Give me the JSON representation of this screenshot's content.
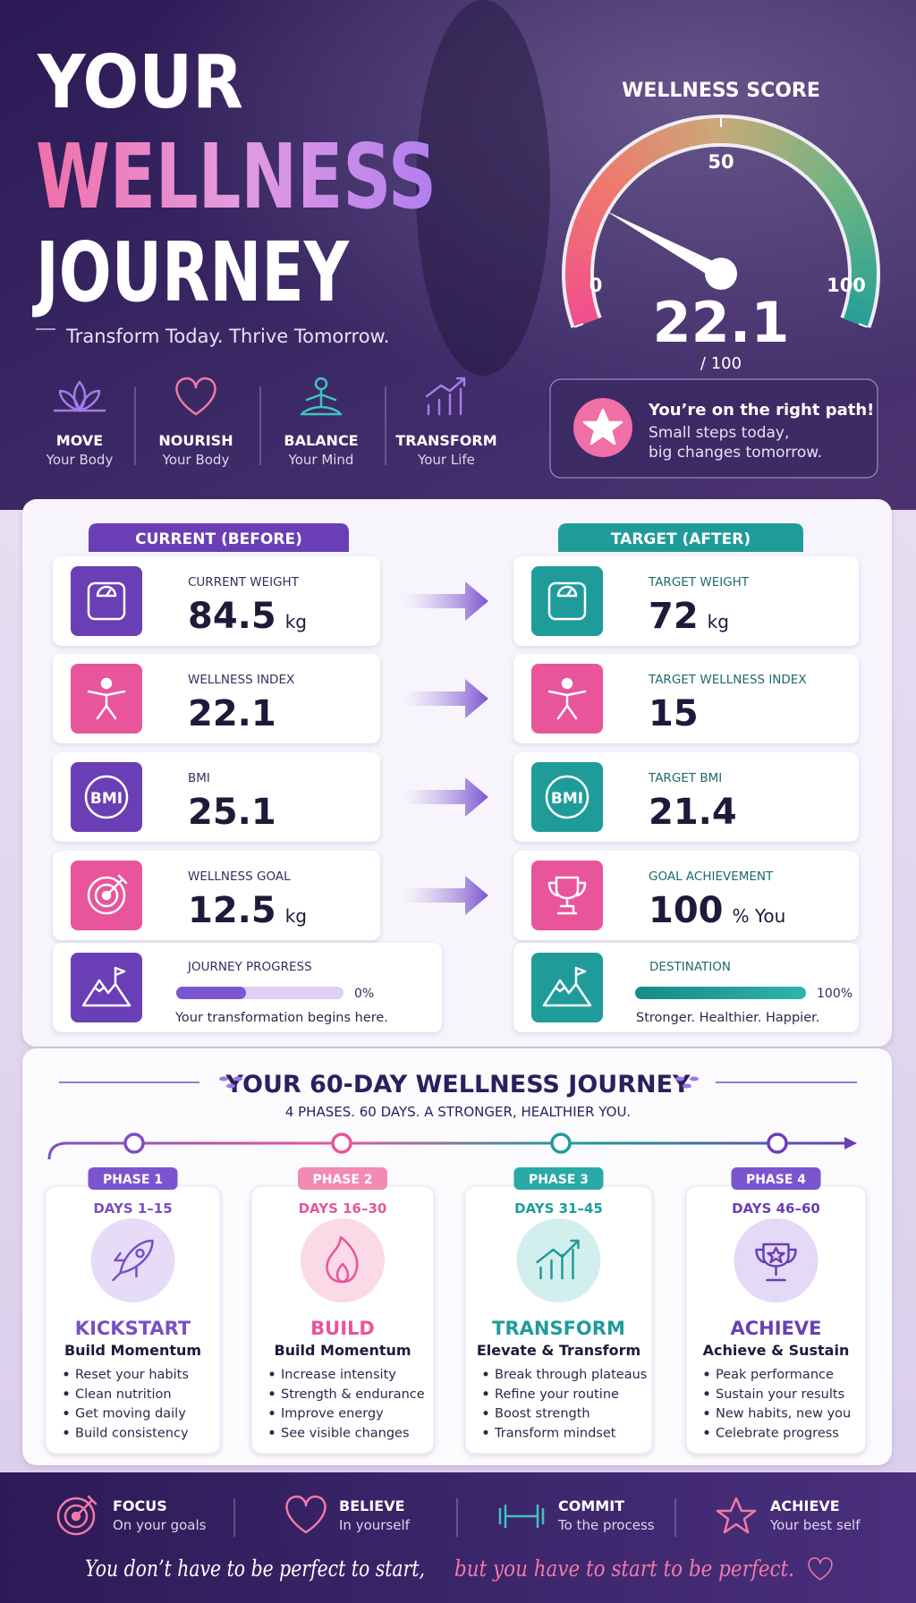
{
  "header": {
    "title_line1": "YOUR",
    "title_line2": "WELLNESS",
    "title_line3": "JOURNEY",
    "tagline": "Transform Today. Thrive Tomorrow."
  },
  "pillars": [
    {
      "title": "MOVE",
      "subtitle": "Your Body"
    },
    {
      "title": "NOURISH",
      "subtitle": "Your Body"
    },
    {
      "title": "BALANCE",
      "subtitle": "Your Mind"
    },
    {
      "title": "TRANSFORM",
      "subtitle": "Your Life"
    }
  ],
  "gauge": {
    "title": "WELLNESS SCORE",
    "value": 22.1,
    "range": [
      0,
      100
    ],
    "ticks": [
      0,
      50,
      100
    ],
    "max_label": "/ 100"
  },
  "message": {
    "title": "You’re on the right path!",
    "lines": [
      "Small steps today,",
      "big changes tomorrow."
    ]
  },
  "comparison": {
    "current_header": "CURRENT (BEFORE)",
    "target_header": "TARGET (AFTER)",
    "rows": [
      {
        "current": {
          "label": "CURRENT WEIGHT",
          "value": "84.5",
          "unit": "kg"
        },
        "target": {
          "label": "TARGET WEIGHT",
          "value": "72",
          "unit": "kg"
        }
      },
      {
        "current": {
          "label": "WELLNESS INDEX",
          "value": "22.1"
        },
        "target": {
          "label": "TARGET WELLNESS INDEX",
          "value": "15"
        }
      },
      {
        "current": {
          "label": "BMI",
          "value": "25.1",
          "icon_text": "BMI"
        },
        "target": {
          "label": "TARGET BMI",
          "value": "21.4",
          "icon_text": "BMI"
        }
      },
      {
        "current": {
          "label": "WELLNESS GOAL",
          "value": "12.5",
          "unit": "kg"
        },
        "target": {
          "label": "GOAL ACHIEVEMENT",
          "value": "100",
          "unit": "% You"
        }
      }
    ],
    "progress": {
      "scale": [
        0,
        100
      ],
      "current": {
        "label": "JOURNEY PROGRESS",
        "value": 0,
        "value_label": "0%",
        "caption": "Your transformation begins here."
      },
      "target": {
        "label": "DESTINATION",
        "value": 100,
        "value_label": "100%",
        "caption": "Stronger. Healthier. Happier."
      }
    }
  },
  "journey": {
    "title": "YOUR 60-DAY WELLNESS JOURNEY",
    "subtitle": "4 PHASES. 60 DAYS. A STRONGER, HEALTHIER YOU.",
    "phases": [
      {
        "phase": "PHASE 1",
        "days": "DAYS 1–15",
        "name": "KICKSTART",
        "subtitle": "Build Momentum",
        "items": [
          "Reset your habits",
          "Clean nutrition",
          "Get moving daily",
          "Build consistency"
        ]
      },
      {
        "phase": "PHASE 2",
        "days": "DAYS 16–30",
        "name": "BUILD",
        "subtitle": "Build Momentum",
        "items": [
          "Increase intensity",
          "Strength & endurance",
          "Improve energy",
          "See visible changes"
        ]
      },
      {
        "phase": "PHASE 3",
        "days": "DAYS 31–45",
        "name": "TRANSFORM",
        "subtitle": "Elevate & Transform",
        "items": [
          "Break through plateaus",
          "Refine your routine",
          "Boost strength",
          "Transform mindset"
        ]
      },
      {
        "phase": "PHASE 4",
        "days": "DAYS 46–60",
        "name": "ACHIEVE",
        "subtitle": "Achieve & Sustain",
        "items": [
          "Peak performance",
          "Sustain your results",
          "New habits, new you",
          "Celebrate progress"
        ]
      }
    ]
  },
  "footer": {
    "items": [
      {
        "title": "FOCUS",
        "subtitle": "On your goals"
      },
      {
        "title": "BELIEVE",
        "subtitle": "In yourself"
      },
      {
        "title": "COMMIT",
        "subtitle": "To the process"
      },
      {
        "title": "ACHIEVE",
        "subtitle": "Your best self"
      }
    ],
    "quote_part1": "You don’t have to be perfect to start,",
    "quote_part2": "but you have to start to be perfect."
  }
}
